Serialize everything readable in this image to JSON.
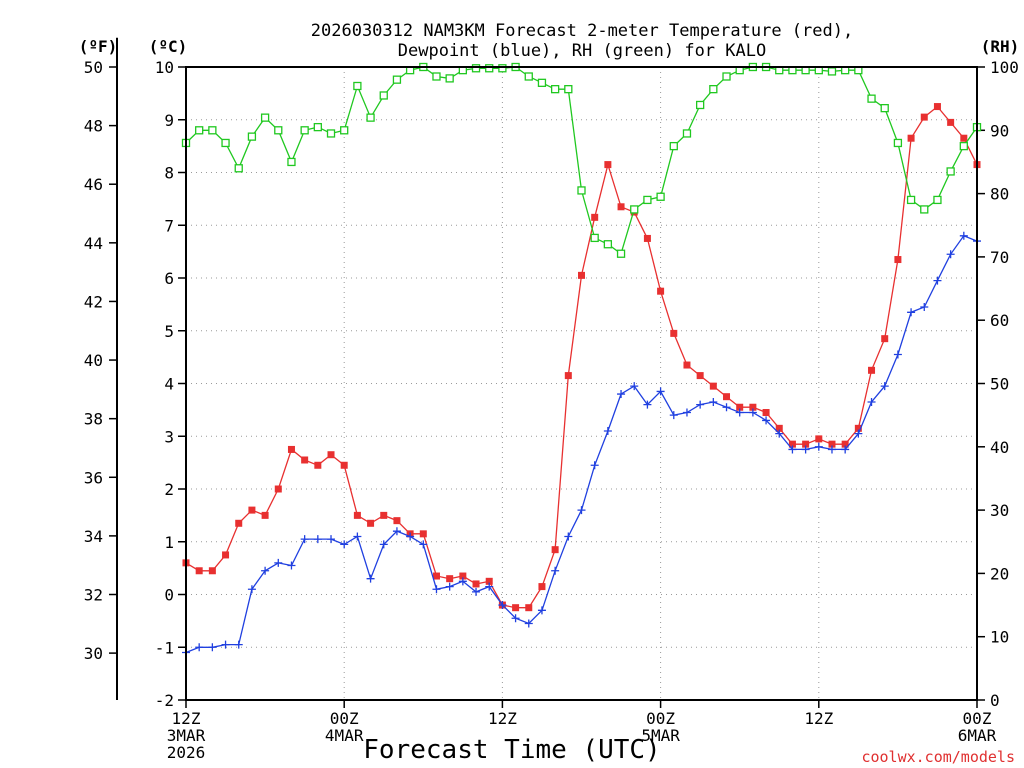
{
  "chart_data": {
    "type": "line",
    "title_line1": "2026030312 NAM3KM Forecast 2-meter Temperature (red),",
    "title_line2": "Dewpoint (blue), RH (green) for KALO",
    "xlabel": "Forecast Time (UTC)",
    "credit": "coolwx.com/models",
    "units": {
      "fahrenheit": "(ºF)",
      "celsius": "(ºC)",
      "rh": "(RH)"
    },
    "x_range_hours": [
      0,
      60
    ],
    "x_ticks": [
      {
        "hour": 0,
        "line1": "12Z",
        "line2": "3MAR",
        "line3": "2026"
      },
      {
        "hour": 12,
        "line1": "00Z",
        "line2": "4MAR",
        "line3": ""
      },
      {
        "hour": 24,
        "line1": "12Z",
        "line2": "",
        "line3": ""
      },
      {
        "hour": 36,
        "line1": "00Z",
        "line2": "5MAR",
        "line3": ""
      },
      {
        "hour": 48,
        "line1": "12Z",
        "line2": "",
        "line3": ""
      },
      {
        "hour": 60,
        "line1": "00Z",
        "line2": "6MAR",
        "line3": ""
      }
    ],
    "celsius_axis": {
      "min": -2,
      "max": 10,
      "ticks": [
        "-2",
        "-1",
        "0",
        "1",
        "2",
        "3",
        "4",
        "5",
        "6",
        "7",
        "8",
        "9",
        "10"
      ]
    },
    "fahrenheit_axis": {
      "ticks": [
        "30",
        "32",
        "34",
        "36",
        "38",
        "40",
        "42",
        "44",
        "46",
        "48",
        "50"
      ]
    },
    "rh_axis": {
      "min": 0,
      "max": 100,
      "ticks": [
        "0",
        "10",
        "20",
        "30",
        "40",
        "50",
        "60",
        "70",
        "80",
        "90",
        "100"
      ]
    },
    "series": [
      {
        "name": "2-meter Temperature (°C)",
        "color": "#e83030",
        "marker": "filled-square",
        "axis": "celsius",
        "x": [
          0,
          1,
          2,
          3,
          4,
          5,
          6,
          7,
          8,
          9,
          10,
          11,
          12,
          13,
          14,
          15,
          16,
          17,
          18,
          19,
          20,
          21,
          22,
          23,
          24,
          25,
          26,
          27,
          28,
          29,
          30,
          31,
          32,
          33,
          34,
          35,
          36,
          37,
          38,
          39,
          40,
          41,
          42,
          43,
          44,
          45,
          46,
          47,
          48,
          49,
          50,
          51,
          52,
          53,
          54,
          55,
          56,
          57,
          58,
          59,
          60
        ],
        "values": [
          0.6,
          0.45,
          0.45,
          0.75,
          1.35,
          1.6,
          1.5,
          2.0,
          2.75,
          2.55,
          2.45,
          2.65,
          2.45,
          1.5,
          1.35,
          1.5,
          1.4,
          1.15,
          1.15,
          0.35,
          0.3,
          0.35,
          0.2,
          0.25,
          -0.2,
          -0.25,
          -0.25,
          0.15,
          0.85,
          4.15,
          6.05,
          7.15,
          8.15,
          7.35,
          7.25,
          6.75,
          5.75,
          4.95,
          4.35,
          4.15,
          3.95,
          3.75,
          3.55,
          3.55,
          3.45,
          3.15,
          2.85,
          2.85,
          2.95,
          2.85,
          2.85,
          3.15,
          4.25,
          4.85,
          6.35,
          8.65,
          9.05,
          9.25,
          8.95,
          8.65,
          8.15
        ]
      },
      {
        "name": "Dewpoint (°C)",
        "color": "#2040e0",
        "marker": "plus",
        "axis": "celsius",
        "x": [
          0,
          1,
          2,
          3,
          4,
          5,
          6,
          7,
          8,
          9,
          10,
          11,
          12,
          13,
          14,
          15,
          16,
          17,
          18,
          19,
          20,
          21,
          22,
          23,
          24,
          25,
          26,
          27,
          28,
          29,
          30,
          31,
          32,
          33,
          34,
          35,
          36,
          37,
          38,
          39,
          40,
          41,
          42,
          43,
          44,
          45,
          46,
          47,
          48,
          49,
          50,
          51,
          52,
          53,
          54,
          55,
          56,
          57,
          58,
          59,
          60
        ],
        "values": [
          -1.1,
          -1.0,
          -1.0,
          -0.95,
          -0.95,
          0.1,
          0.45,
          0.6,
          0.55,
          1.05,
          1.05,
          1.05,
          0.95,
          1.1,
          0.3,
          0.95,
          1.2,
          1.1,
          0.95,
          0.1,
          0.15,
          0.25,
          0.05,
          0.15,
          -0.2,
          -0.45,
          -0.55,
          -0.3,
          0.45,
          1.1,
          1.6,
          2.45,
          3.1,
          3.8,
          3.95,
          3.6,
          3.85,
          3.4,
          3.45,
          3.6,
          3.65,
          3.55,
          3.45,
          3.45,
          3.3,
          3.05,
          2.75,
          2.75,
          2.8,
          2.75,
          2.75,
          3.05,
          3.65,
          3.95,
          4.55,
          5.35,
          5.45,
          5.95,
          6.45,
          6.8,
          6.7
        ]
      },
      {
        "name": "RH (%)",
        "color": "#20c820",
        "marker": "open-square",
        "axis": "rh",
        "x": [
          0,
          1,
          2,
          3,
          4,
          5,
          6,
          7,
          8,
          9,
          10,
          11,
          12,
          13,
          14,
          15,
          16,
          17,
          18,
          19,
          20,
          21,
          22,
          23,
          24,
          25,
          26,
          27,
          28,
          29,
          30,
          31,
          32,
          33,
          34,
          35,
          36,
          37,
          38,
          39,
          40,
          41,
          42,
          43,
          44,
          45,
          46,
          47,
          48,
          49,
          50,
          51,
          52,
          53,
          54,
          55,
          56,
          57,
          58,
          59,
          60
        ],
        "values": [
          88,
          90,
          90,
          88,
          84,
          89,
          92,
          90,
          85,
          90,
          90.5,
          89.5,
          90,
          97,
          92,
          95.5,
          98,
          99.5,
          100,
          98.5,
          98.2,
          99.5,
          99.8,
          99.8,
          99.8,
          100,
          98.5,
          97.5,
          96.5,
          96.5,
          80.5,
          73,
          72,
          70.5,
          77.5,
          79,
          79.5,
          87.5,
          89.5,
          94,
          96.5,
          98.5,
          99.5,
          100,
          100,
          99.5,
          99.5,
          99.5,
          99.5,
          99.3,
          99.5,
          99.5,
          95,
          93.5,
          88,
          79,
          77.5,
          79,
          83.5,
          87.5,
          90.5
        ]
      }
    ]
  }
}
